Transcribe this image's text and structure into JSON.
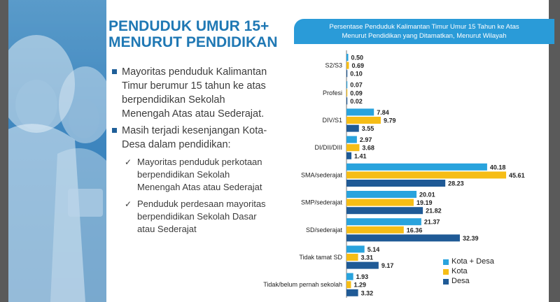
{
  "slide": {
    "title_line1": "PENDUDUK UMUR 15+",
    "title_line2": "MENURUT PENDIDIKAN",
    "bullets": [
      {
        "text": "Mayoritas penduduk Kalimantan Timur berumur 15 tahun ke atas berpendidikan Sekolah Menengah Atas atau Sederajat."
      },
      {
        "text": "Masih terjadi kesenjangan Kota-Desa dalam pendidikan:",
        "sub": [
          "Mayoritas penduduk perkotaan berpendidikan Sekolah Menengah Atas atau Sederajat",
          "Penduduk perdesaan mayoritas berpendidikan Sekolah Dasar atau Sederajat"
        ]
      }
    ],
    "check_glyph": "✓"
  },
  "chart_header": {
    "line1": "Persentase Penduduk Kalimantan Timur Umur 15 Tahun ke Atas",
    "line2": "Menurut Pendidikan yang Ditamatkan, Menurut Wilayah"
  },
  "chart_data": {
    "type": "bar",
    "orientation": "horizontal",
    "title": "Persentase Penduduk Kalimantan Timur Umur 15 Tahun ke Atas Menurut Pendidikan yang Ditamatkan, Menurut Wilayah",
    "categories": [
      "S2/S3",
      "Profesi",
      "DIV/S1",
      "DI/DII/DIII",
      "SMA/sederajat",
      "SMP/sederajat",
      "SD/sederajat",
      "Tidak tamat SD",
      "Tidak/belum pernah sekolah"
    ],
    "series": [
      {
        "name": "Kota + Desa",
        "color": "#29a3dd",
        "values": [
          0.5,
          0.07,
          7.84,
          2.97,
          40.18,
          20.01,
          21.37,
          5.14,
          1.93
        ]
      },
      {
        "name": "Kota",
        "color": "#f6bd16",
        "values": [
          0.69,
          0.09,
          9.79,
          3.68,
          45.61,
          19.19,
          16.36,
          3.31,
          1.29
        ]
      },
      {
        "name": "Desa",
        "color": "#1f5a96",
        "values": [
          0.1,
          0.02,
          3.55,
          1.41,
          28.23,
          21.82,
          32.39,
          9.17,
          3.32
        ]
      }
    ],
    "value_labels": [
      [
        "0.50",
        "0.07",
        "7.84",
        "2.97",
        "40.18",
        "20.01",
        "21.37",
        "5.14",
        "1.93"
      ],
      [
        "0.69",
        "0.09",
        "9.79",
        "3.68",
        "45.61",
        "19.19",
        "16.36",
        "3.31",
        "1.29"
      ],
      [
        "0.10",
        "0.02",
        "3.55",
        "1.41",
        "28.23",
        "21.82",
        "32.39",
        "9.17",
        "3.32"
      ]
    ],
    "xlim": [
      0,
      50
    ],
    "grid": false,
    "legend_position": "bottom-right"
  }
}
